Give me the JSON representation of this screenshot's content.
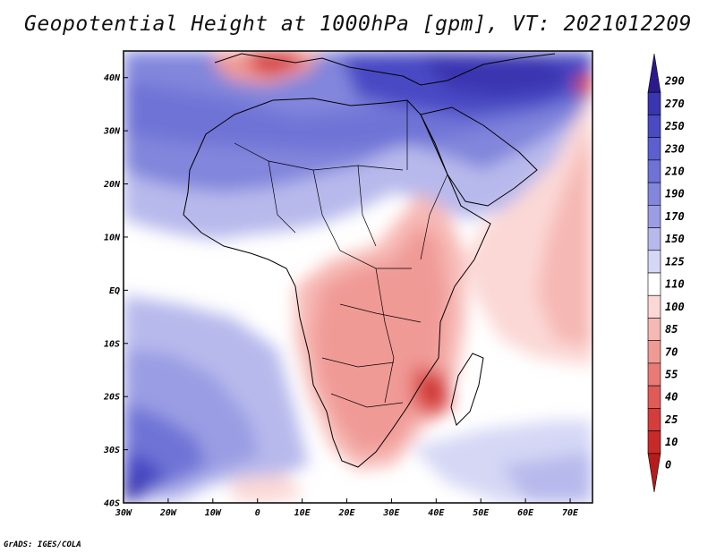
{
  "title": "Geopotential Height at 1000hPa [gpm], VT: 2021012209",
  "credit": "GrADS: IGES/COLA",
  "map": {
    "lon_range": [
      -30,
      75
    ],
    "lat_range": [
      -40,
      45
    ],
    "lat_ticks": [
      {
        "value": 40,
        "label": "40N"
      },
      {
        "value": 30,
        "label": "30N"
      },
      {
        "value": 20,
        "label": "20N"
      },
      {
        "value": 10,
        "label": "10N"
      },
      {
        "value": 0,
        "label": "EQ"
      },
      {
        "value": -10,
        "label": "10S"
      },
      {
        "value": -20,
        "label": "20S"
      },
      {
        "value": -30,
        "label": "30S"
      },
      {
        "value": -40,
        "label": "40S"
      }
    ],
    "lon_ticks": [
      {
        "value": -30,
        "label": "30W"
      },
      {
        "value": -20,
        "label": "20W"
      },
      {
        "value": -10,
        "label": "10W"
      },
      {
        "value": 0,
        "label": "0"
      },
      {
        "value": 10,
        "label": "10E"
      },
      {
        "value": 20,
        "label": "20E"
      },
      {
        "value": 30,
        "label": "30E"
      },
      {
        "value": 40,
        "label": "40E"
      },
      {
        "value": 50,
        "label": "50E"
      },
      {
        "value": 60,
        "label": "60E"
      },
      {
        "value": 70,
        "label": "70E"
      }
    ]
  },
  "colorbar": {
    "levels": [
      "290",
      "270",
      "250",
      "230",
      "210",
      "190",
      "170",
      "150",
      "125",
      "110",
      "100",
      "85",
      "70",
      "55",
      "40",
      "25",
      "10",
      "0"
    ],
    "colors": [
      "#2a1a8e",
      "#3a35b0",
      "#4a4ac4",
      "#5b5fcf",
      "#6f73d6",
      "#8286dc",
      "#9a9de3",
      "#b7b9ec",
      "#d5d7f5",
      "#ffffff",
      "#fbd8d6",
      "#f6b8b4",
      "#f09a96",
      "#e97a76",
      "#e05b58",
      "#d53d3c",
      "#c82a2a",
      "#b51c1c"
    ]
  }
}
